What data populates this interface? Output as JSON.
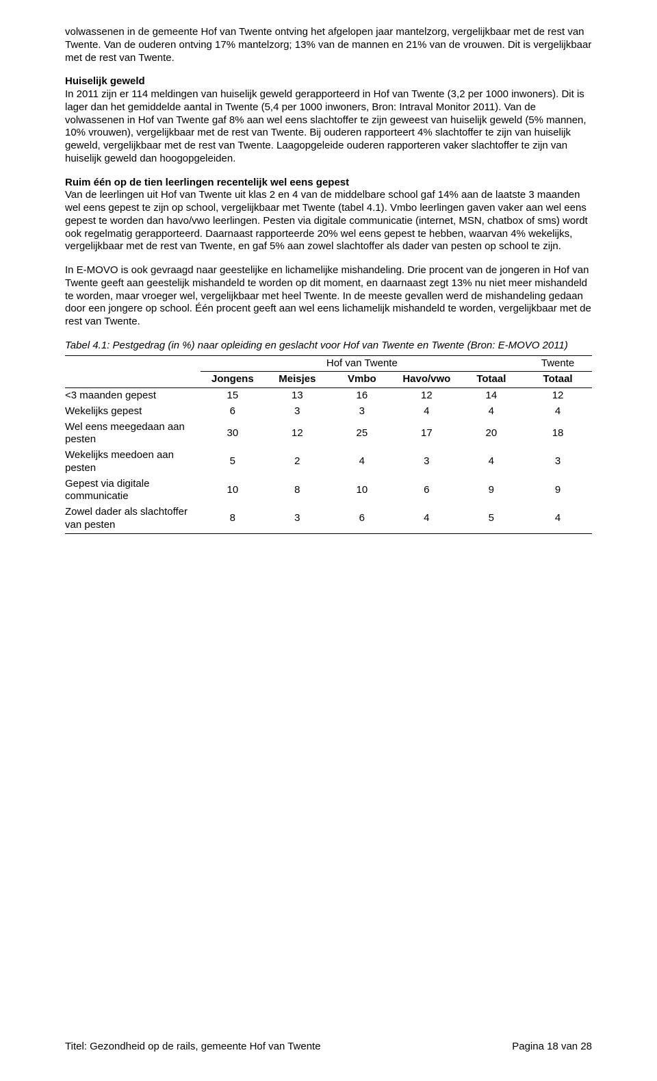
{
  "paragraphs": {
    "p1": "volwassenen in de gemeente Hof van Twente ontving het afgelopen jaar mantelzorg, vergelijkbaar met de rest van Twente. Van de ouderen ontving 17% mantelzorg; 13% van de mannen en 21% van de vrouwen. Dit is vergelijkbaar met de rest van Twente.",
    "h2": "Huiselijk geweld",
    "p2": "In 2011 zijn er 114 meldingen van huiselijk geweld gerapporteerd in Hof van Twente (3,2 per 1000 inwoners). Dit is lager dan het gemiddelde aantal in Twente (5,4 per 1000 inwoners, Bron: Intraval Monitor 2011). Van de volwassenen in Hof van Twente gaf 8% aan wel eens slachtoffer te zijn geweest van huiselijk geweld (5% mannen, 10% vrouwen), vergelijkbaar met de rest van Twente. Bij ouderen rapporteert 4% slachtoffer te zijn van huiselijk geweld, vergelijkbaar met de rest van Twente. Laagopgeleide ouderen rapporteren vaker slachtoffer te zijn van huiselijk geweld dan hoogopgeleiden.",
    "h3": "Ruim één op de tien leerlingen recentelijk wel eens gepest",
    "p3": "Van de leerlingen uit Hof van Twente uit klas 2 en 4 van de middelbare school gaf 14% aan de laatste 3 maanden wel eens gepest te zijn op school, vergelijkbaar met Twente (tabel 4.1). Vmbo leerlingen gaven vaker aan wel eens gepest te worden dan havo/vwo leerlingen. Pesten via digitale communicatie (internet, MSN, chatbox of sms) wordt ook regelmatig gerapporteerd. Daarnaast rapporteerde 20% wel eens gepest te hebben, waarvan 4% wekelijks, vergelijkbaar met de rest van Twente, en gaf 5% aan zowel slachtoffer als dader van pesten op school te zijn.",
    "p4": "In E-MOVO is ook gevraagd naar geestelijke en lichamelijke mishandeling. Drie procent van de jongeren in Hof van Twente geeft aan geestelijk mishandeld te worden op dit moment, en daarnaast zegt 13% nu niet meer mishandeld te worden, maar vroeger wel, vergelijkbaar met heel Twente. In de meeste gevallen werd de mishandeling gedaan door een jongere op school. Één procent geeft aan wel eens lichamelijk mishandeld te worden, vergelijkbaar met de rest van Twente.",
    "table_caption": "Tabel 4.1: Pestgedrag (in %) naar opleiding en geslacht voor Hof van Twente en Twente (Bron: E-MOVO 2011)"
  },
  "table": {
    "group_headers": {
      "left": "Hof van Twente",
      "right": "Twente"
    },
    "columns": [
      "Jongens",
      "Meisjes",
      "Vmbo",
      "Havo/vwo",
      "Totaal",
      "Totaal"
    ],
    "rows": [
      {
        "label": "<3 maanden gepest",
        "values": [
          15,
          13,
          16,
          12,
          14,
          12
        ]
      },
      {
        "label": "Wekelijks gepest",
        "values": [
          6,
          3,
          3,
          4,
          4,
          4
        ]
      },
      {
        "label": "Wel eens meegedaan aan pesten",
        "values": [
          30,
          12,
          25,
          17,
          20,
          18
        ]
      },
      {
        "label": "Wekelijks meedoen aan pesten",
        "values": [
          5,
          2,
          4,
          3,
          4,
          3
        ]
      },
      {
        "label": "Gepest via digitale communicatie",
        "values": [
          10,
          8,
          10,
          6,
          9,
          9
        ]
      },
      {
        "label": "Zowel dader als slachtoffer van pesten",
        "values": [
          8,
          3,
          6,
          4,
          5,
          4
        ]
      }
    ]
  },
  "footer": {
    "left": "Titel: Gezondheid op de rails, gemeente Hof van Twente",
    "right": "Pagina 18 van 28"
  }
}
